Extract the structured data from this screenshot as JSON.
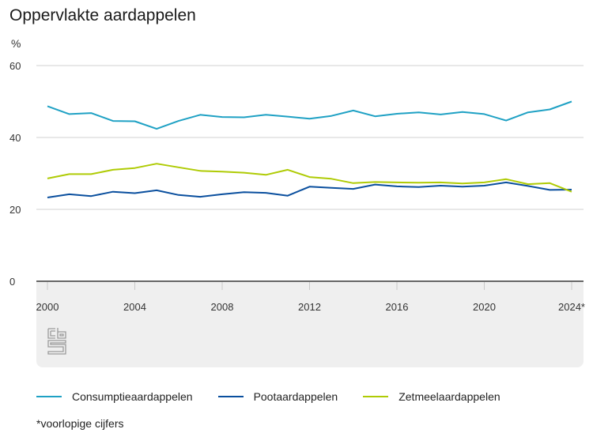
{
  "chart_data": {
    "type": "line",
    "title": "Oppervlakte aardappelen",
    "ylabel": "%",
    "xlabel": "",
    "ylim": [
      0,
      60
    ],
    "yticks": [
      0,
      20,
      40,
      60
    ],
    "xlim": [
      2000,
      2024
    ],
    "xticks": [
      2000,
      2004,
      2008,
      2012,
      2016,
      2020,
      2024
    ],
    "xtick_labels": [
      "2000",
      "2004",
      "2008",
      "2012",
      "2016",
      "2020",
      "2024*"
    ],
    "grid": true,
    "legend_position": "bottom",
    "x": [
      2000,
      2001,
      2002,
      2003,
      2004,
      2005,
      2006,
      2007,
      2008,
      2009,
      2010,
      2011,
      2012,
      2013,
      2014,
      2015,
      2016,
      2017,
      2018,
      2019,
      2020,
      2021,
      2022,
      2023,
      2024
    ],
    "series": [
      {
        "name": "Consumptieaardappelen",
        "color": "#1fa1c4",
        "values": [
          48.7,
          46.5,
          46.8,
          44.6,
          44.5,
          42.4,
          44.6,
          46.3,
          45.7,
          45.6,
          46.3,
          45.8,
          45.2,
          46.0,
          47.5,
          45.9,
          46.6,
          47.0,
          46.4,
          47.1,
          46.5,
          44.7,
          47.0,
          47.8,
          50.0
        ]
      },
      {
        "name": "Pootaardappelen",
        "color": "#0a4f9e",
        "values": [
          23.3,
          24.2,
          23.7,
          24.9,
          24.5,
          25.3,
          24.0,
          23.5,
          24.2,
          24.8,
          24.6,
          23.8,
          26.3,
          26.0,
          25.7,
          26.9,
          26.4,
          26.2,
          26.6,
          26.3,
          26.6,
          27.5,
          26.5,
          25.4,
          25.5
        ]
      },
      {
        "name": "Zetmeelaardappelen",
        "color": "#afcb05",
        "values": [
          28.6,
          29.8,
          29.8,
          31.0,
          31.5,
          32.7,
          31.7,
          30.7,
          30.5,
          30.2,
          29.6,
          31.0,
          29.0,
          28.5,
          27.3,
          27.6,
          27.5,
          27.4,
          27.5,
          27.2,
          27.5,
          28.4,
          27.0,
          27.3,
          24.9
        ]
      }
    ],
    "footnote": "*voorlopige cijfers"
  },
  "source_logo": "cbs-logo"
}
